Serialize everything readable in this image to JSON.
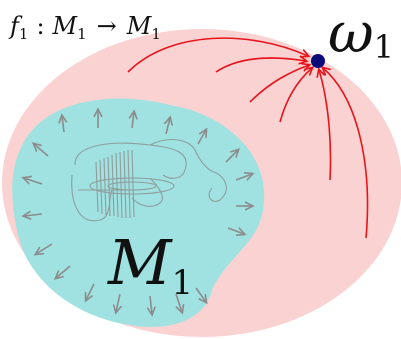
{
  "title_map": {
    "f": "f",
    "f_sub": "1",
    "colon": ":",
    "domain": "M",
    "domain_sub": "1",
    "arrow": "→",
    "codomain": "M",
    "codomain_sub": "1"
  },
  "omega_label": {
    "symbol": "ω",
    "sub": "1"
  },
  "region_label": {
    "symbol": "M",
    "sub": "1"
  },
  "colors": {
    "outer_region": "#fbd2d2",
    "inner_region": "#9fe2e1",
    "omega_point": "#0a0a78",
    "red_arrows": "#e8141c",
    "grey_arrows": "#8c8c8c"
  }
}
